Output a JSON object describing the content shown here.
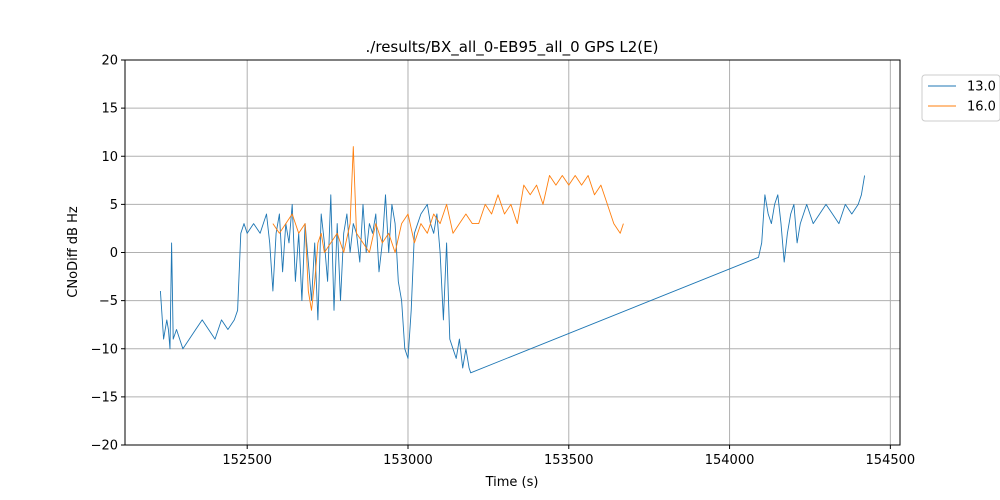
{
  "chart_data": {
    "type": "line",
    "title": "./results/BX_all_0-EB95_all_0 GPS L2(E)",
    "xlabel": "Time (s)",
    "ylabel": "CNoDiff dB Hz",
    "xlim": [
      152120,
      154530
    ],
    "ylim": [
      -20,
      20
    ],
    "xticks": [
      152500,
      153000,
      153500,
      154000,
      154500
    ],
    "yticks": [
      -20,
      -15,
      -10,
      -5,
      0,
      5,
      10,
      15,
      20
    ],
    "grid": true,
    "legend_position": "outside-top-right",
    "series": [
      {
        "name": "13.0",
        "color": "#1f77b4",
        "x": [
          152230,
          152240,
          152250,
          152255,
          152260,
          152265,
          152270,
          152280,
          152300,
          152320,
          152340,
          152360,
          152380,
          152400,
          152420,
          152440,
          152460,
          152470,
          152480,
          152490,
          152500,
          152520,
          152540,
          152560,
          152570,
          152580,
          152590,
          152600,
          152610,
          152620,
          152630,
          152640,
          152650,
          152660,
          152670,
          152680,
          152700,
          152710,
          152720,
          152730,
          152740,
          152750,
          152760,
          152770,
          152780,
          152790,
          152800,
          152810,
          152820,
          152830,
          152840,
          152850,
          152860,
          152870,
          152880,
          152890,
          152900,
          152910,
          152920,
          152930,
          152940,
          152950,
          152960,
          152970,
          152980,
          152990,
          153000,
          153010,
          153020,
          153040,
          153060,
          153070,
          153080,
          153090,
          153100,
          153110,
          153120,
          153130,
          153140,
          153150,
          153160,
          153170,
          153180,
          153190,
          153195,
          154090,
          154100,
          154110,
          154120,
          154130,
          154140,
          154150,
          154160,
          154170,
          154180,
          154190,
          154200,
          154210,
          154220,
          154230,
          154240,
          154260,
          154280,
          154300,
          154320,
          154340,
          154360,
          154380,
          154400,
          154410,
          154420
        ],
        "y": [
          -4,
          -9,
          -7,
          -8,
          -10,
          1,
          -9,
          -8,
          -10,
          -9,
          -8,
          -7,
          -8,
          -9,
          -7,
          -8,
          -7,
          -6,
          2,
          3,
          2,
          3,
          2,
          4,
          1,
          -4,
          2,
          4,
          -2,
          3,
          1,
          5,
          -3,
          2,
          -5,
          3,
          -5,
          1,
          -7,
          4,
          1,
          -3,
          6,
          -6,
          3,
          -5,
          2,
          4,
          0,
          3,
          2,
          -1,
          5,
          0,
          3,
          2,
          4,
          -2,
          1,
          6,
          0,
          5,
          3,
          -3,
          -5,
          -10,
          -11,
          -6,
          2,
          4,
          5,
          3,
          2,
          4,
          0,
          -7,
          1,
          -9,
          -10,
          -11,
          -9,
          -12,
          -10,
          -12,
          -12.5,
          -0.5,
          1,
          6,
          4,
          3,
          5,
          6,
          3,
          -1,
          2,
          4,
          5,
          1,
          3,
          4,
          5,
          3,
          4,
          5,
          4,
          3,
          5,
          4,
          5,
          6,
          8
        ]
      },
      {
        "name": "16.0",
        "color": "#ff7f0e",
        "x": [
          152580,
          152600,
          152620,
          152640,
          152660,
          152680,
          152690,
          152700,
          152710,
          152720,
          152730,
          152740,
          152760,
          152780,
          152800,
          152820,
          152830,
          152840,
          152860,
          152880,
          152900,
          152920,
          152940,
          152960,
          152980,
          153000,
          153020,
          153040,
          153060,
          153080,
          153100,
          153120,
          153140,
          153160,
          153180,
          153200,
          153220,
          153240,
          153260,
          153280,
          153300,
          153320,
          153340,
          153360,
          153380,
          153400,
          153420,
          153440,
          153460,
          153480,
          153500,
          153520,
          153540,
          153560,
          153580,
          153600,
          153620,
          153640,
          153660,
          153670
        ],
        "y": [
          3,
          2,
          3,
          4,
          2,
          3,
          -4,
          -6,
          -3,
          1,
          2,
          0,
          1,
          2,
          0,
          3,
          11,
          2,
          1,
          0,
          3,
          1,
          2,
          0,
          3,
          4,
          1,
          3,
          2,
          4,
          3,
          5,
          2,
          3,
          4,
          3,
          3,
          5,
          4,
          6,
          4,
          5,
          3,
          7,
          6,
          7,
          5,
          8,
          7,
          8,
          7,
          8,
          7,
          8,
          6,
          7,
          5,
          3,
          2,
          3
        ]
      }
    ]
  }
}
